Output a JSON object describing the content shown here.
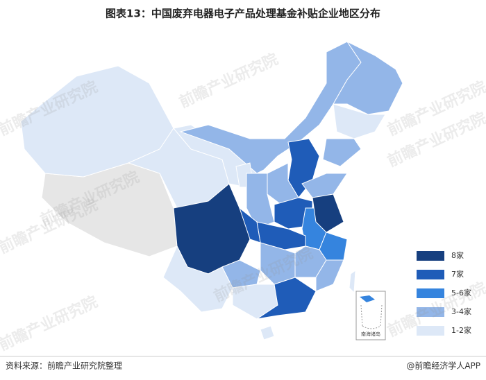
{
  "title": "图表13：中国废弃电器电子产品处理基金补贴企业地区分布",
  "legend": {
    "items": [
      {
        "label": "8家",
        "color": "#163f7f"
      },
      {
        "label": "7家",
        "color": "#1f5cb8"
      },
      {
        "label": "5-6家",
        "color": "#3584de"
      },
      {
        "label": "3-4家",
        "color": "#93b6e8"
      },
      {
        "label": "1-2家",
        "color": "#dde8f7"
      }
    ]
  },
  "no_data_color": "#e6e6e6",
  "inset_label": "南海诸岛",
  "watermark": "前瞻产业研究院",
  "source": "资料来源：前瞻产业研究院整理",
  "credit": "@前瞻经济学人APP"
}
